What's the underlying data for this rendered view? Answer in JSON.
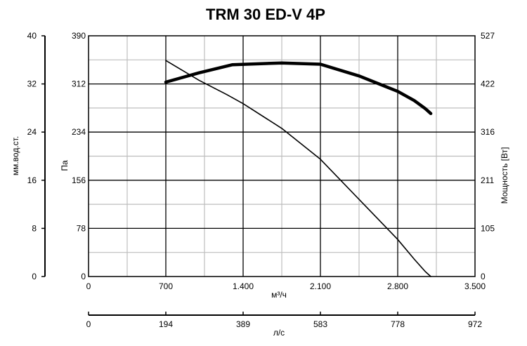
{
  "chart_data": {
    "type": "line",
    "title": "TRM 30 ED-V 4P",
    "xlabel": "м³/ч",
    "xlim": [
      0,
      3500
    ],
    "x_ticks": [
      "0",
      "700",
      "1.400",
      "2.100",
      "2.800",
      "3.500"
    ],
    "x2label": "л/с",
    "x2_ticks": [
      "0",
      "194",
      "389",
      "583",
      "778",
      "972"
    ],
    "ylabel": "Па",
    "ylim": [
      0,
      390
    ],
    "y_ticks": [
      "0",
      "78",
      "156",
      "234",
      "312",
      "390"
    ],
    "y_outer_label": "мм.вод.ст.",
    "y_outer_ticks": [
      "0",
      "8",
      "16",
      "24",
      "32",
      "40"
    ],
    "y_right_label": "Мощность [Вт]",
    "y_right_ticks": [
      "0",
      "105",
      "211",
      "316",
      "422",
      "527"
    ],
    "grid": true,
    "series": [
      {
        "role": "pressure",
        "color": "#000000",
        "x": [
          700,
          1000,
          1250,
          1400,
          1750,
          2100,
          2450,
          2800,
          2950,
          3050,
          3100
        ],
        "y": [
          350,
          318,
          295,
          280,
          240,
          190,
          125,
          60,
          28,
          8,
          0
        ]
      },
      {
        "role": "power",
        "color": "#000000",
        "x": [
          700,
          1000,
          1300,
          1750,
          2100,
          2450,
          2800,
          2950,
          3050,
          3100
        ],
        "y": [
          315,
          330,
          343,
          346,
          344,
          325,
          300,
          285,
          272,
          264
        ]
      }
    ]
  }
}
